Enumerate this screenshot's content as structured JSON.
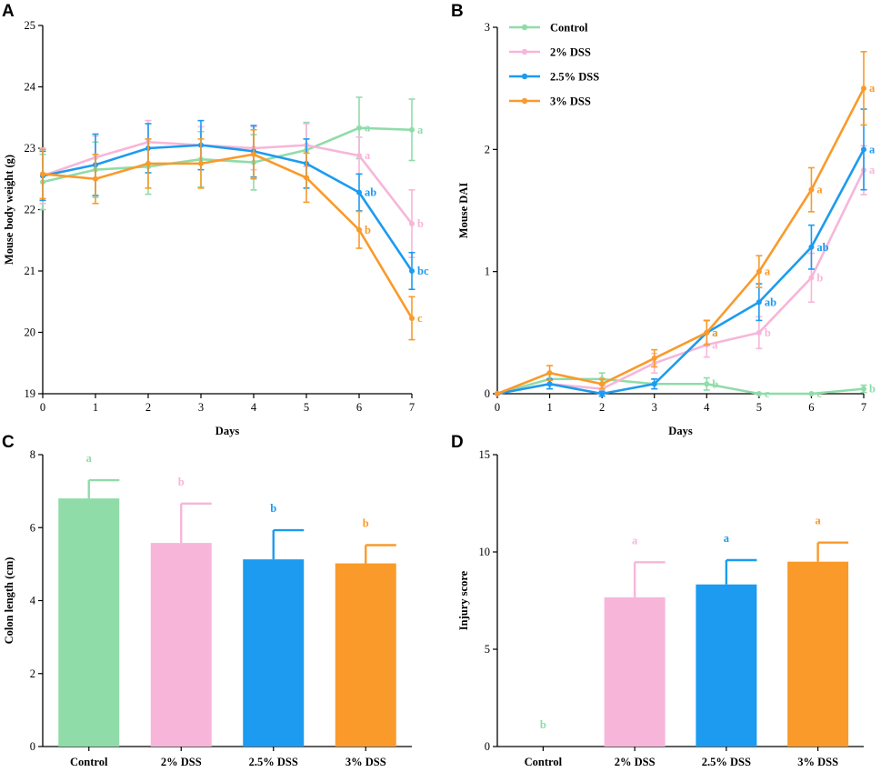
{
  "colors": {
    "Control": "#8fdca8",
    "2% DSS": "#f7b6d9",
    "2.5% DSS": "#1c9bf0",
    "3% DSS": "#f99a2b",
    "axis": "#000000"
  },
  "legend": {
    "entries": [
      "Control",
      "2% DSS",
      "2.5% DSS",
      "3% DSS"
    ]
  },
  "chart_data": [
    {
      "panel": "A",
      "type": "line",
      "xlabel": "Days",
      "ylabel": "Mouse body weight (g)",
      "xlim": [
        0,
        7
      ],
      "ylim": [
        19,
        25
      ],
      "x": [
        0,
        1,
        2,
        3,
        4,
        5,
        6,
        7
      ],
      "series": [
        {
          "name": "Control",
          "values": [
            22.45,
            22.65,
            22.7,
            22.82,
            22.77,
            22.97,
            23.33,
            23.3
          ],
          "errors": [
            0.45,
            0.45,
            0.45,
            0.45,
            0.45,
            0.45,
            0.5,
            0.5
          ]
        },
        {
          "name": "2% DSS",
          "values": [
            22.55,
            22.85,
            23.1,
            23.05,
            23.0,
            23.05,
            22.88,
            21.77
          ],
          "errors": [
            0.45,
            0.35,
            0.35,
            0.3,
            0.35,
            0.35,
            0.3,
            0.55
          ]
        },
        {
          "name": "2.5% DSS",
          "values": [
            22.55,
            22.73,
            23.0,
            23.05,
            22.95,
            22.75,
            22.28,
            21.0
          ],
          "errors": [
            0.4,
            0.5,
            0.4,
            0.4,
            0.42,
            0.4,
            0.3,
            0.3
          ]
        },
        {
          "name": "3% DSS",
          "values": [
            22.58,
            22.5,
            22.75,
            22.75,
            22.9,
            22.52,
            21.67,
            20.23
          ],
          "errors": [
            0.4,
            0.4,
            0.4,
            0.4,
            0.4,
            0.4,
            0.3,
            0.35
          ]
        }
      ],
      "annotations": [
        {
          "series": "Control",
          "x": 6,
          "text": "a"
        },
        {
          "series": "Control",
          "x": 7,
          "text": "a"
        },
        {
          "series": "2% DSS",
          "x": 6,
          "text": "a"
        },
        {
          "series": "2% DSS",
          "x": 7,
          "text": "b"
        },
        {
          "series": "2.5% DSS",
          "x": 6,
          "text": "ab"
        },
        {
          "series": "2.5% DSS",
          "x": 7,
          "text": "bc"
        },
        {
          "series": "3% DSS",
          "x": 6,
          "text": "b"
        },
        {
          "series": "3% DSS",
          "x": 7,
          "text": "c"
        }
      ]
    },
    {
      "panel": "B",
      "type": "line",
      "xlabel": "Days",
      "ylabel": "Mouse DAI",
      "xlim": [
        0,
        7
      ],
      "ylim": [
        0,
        3
      ],
      "x": [
        0,
        1,
        2,
        3,
        4,
        5,
        6,
        7
      ],
      "series": [
        {
          "name": "Control",
          "values": [
            0.0,
            0.12,
            0.12,
            0.08,
            0.08,
            0.0,
            0.0,
            0.04
          ],
          "errors": [
            0,
            0.05,
            0.05,
            0.04,
            0.05,
            0,
            0,
            0.03
          ]
        },
        {
          "name": "2% DSS",
          "values": [
            0.0,
            0.08,
            0.04,
            0.25,
            0.4,
            0.5,
            0.95,
            1.83
          ],
          "errors": [
            0,
            0.04,
            0.04,
            0.08,
            0.1,
            0.13,
            0.2,
            0.2
          ]
        },
        {
          "name": "2.5% DSS",
          "values": [
            0.0,
            0.08,
            0.0,
            0.08,
            0.5,
            0.75,
            1.2,
            2.0
          ],
          "errors": [
            0,
            0.04,
            0.02,
            0.04,
            0.1,
            0.15,
            0.18,
            0.33
          ]
        },
        {
          "name": "3% DSS",
          "values": [
            0.0,
            0.17,
            0.08,
            0.29,
            0.5,
            1.0,
            1.67,
            2.5
          ],
          "errors": [
            0,
            0.06,
            0.04,
            0.07,
            0.1,
            0.13,
            0.18,
            0.3
          ]
        }
      ],
      "annotations": [
        {
          "series": "Control",
          "x": 4,
          "text": "b"
        },
        {
          "series": "Control",
          "x": 5,
          "text": "c"
        },
        {
          "series": "Control",
          "x": 6,
          "text": "c"
        },
        {
          "series": "Control",
          "x": 7,
          "text": "b"
        },
        {
          "series": "2% DSS",
          "x": 4,
          "text": "a"
        },
        {
          "series": "2% DSS",
          "x": 5,
          "text": "b"
        },
        {
          "series": "2% DSS",
          "x": 6,
          "text": "b"
        },
        {
          "series": "2% DSS",
          "x": 7,
          "text": "a"
        },
        {
          "series": "2.5% DSS",
          "x": 4,
          "text": "a"
        },
        {
          "series": "2.5% DSS",
          "x": 5,
          "text": "ab"
        },
        {
          "series": "2.5% DSS",
          "x": 6,
          "text": "ab"
        },
        {
          "series": "2.5% DSS",
          "x": 7,
          "text": "a"
        },
        {
          "series": "3% DSS",
          "x": 4,
          "text": "a"
        },
        {
          "series": "3% DSS",
          "x": 5,
          "text": "a"
        },
        {
          "series": "3% DSS",
          "x": 6,
          "text": "a"
        },
        {
          "series": "3% DSS",
          "x": 7,
          "text": "a"
        }
      ]
    },
    {
      "panel": "C",
      "type": "bar",
      "xlabel": "",
      "ylabel": "Colon length (cm)",
      "ylim": [
        0,
        8
      ],
      "categories": [
        "Control",
        "2% DSS",
        "2.5% DSS",
        "3% DSS"
      ],
      "values": [
        6.8,
        5.58,
        5.13,
        5.02
      ],
      "errors": [
        0.5,
        1.08,
        0.8,
        0.5
      ],
      "letters": [
        "a",
        "b",
        "b",
        "b"
      ]
    },
    {
      "panel": "D",
      "type": "bar",
      "xlabel": "",
      "ylabel": "Injury score",
      "ylim": [
        0,
        15
      ],
      "categories": [
        "Control",
        "2% DSS",
        "2.5% DSS",
        "3% DSS"
      ],
      "values": [
        0,
        7.67,
        8.33,
        9.5
      ],
      "errors": [
        0,
        1.8,
        1.25,
        0.98
      ],
      "letters": [
        "b",
        "a",
        "a",
        "a"
      ]
    }
  ]
}
